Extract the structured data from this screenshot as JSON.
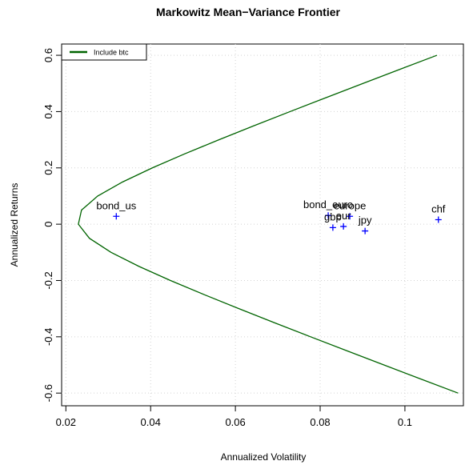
{
  "chart_data": {
    "type": "frontier",
    "title": "Markowitz Mean−Variance Frontier",
    "x_label": "Annualized Volatility",
    "y_label": "Annualized Returns",
    "xlim": [
      0.019,
      0.1138
    ],
    "ylim": [
      -0.645,
      0.64
    ],
    "xticks": [
      0.02,
      0.04,
      0.06,
      0.08,
      0.1
    ],
    "yticks": [
      -0.6,
      -0.4,
      -0.2,
      0.0,
      0.2,
      0.4,
      0.6
    ],
    "grid": true,
    "legend_position": "topleft",
    "series": [
      {
        "name": "Include btc",
        "color": "#006400",
        "x": [
          0.11255,
          0.10378,
          0.09505,
          0.08636,
          0.07774,
          0.06922,
          0.06082,
          0.05261,
          0.04469,
          0.03726,
          0.03066,
          0.02555,
          0.02295,
          0.02369,
          0.02751,
          0.03338,
          0.0404,
          0.04806,
          0.05612,
          0.06443,
          0.07289,
          0.08146,
          0.09011,
          0.09881,
          0.10756
        ],
        "values": [
          -0.6,
          -0.55,
          -0.5,
          -0.45,
          -0.4,
          -0.35,
          -0.3,
          -0.25,
          -0.2,
          -0.15,
          -0.1,
          -0.05,
          0.0,
          0.05,
          0.1,
          0.15,
          0.2,
          0.25,
          0.3,
          0.35,
          0.4,
          0.45,
          0.5,
          0.55,
          0.6
        ]
      }
    ],
    "points": {
      "color": "#0000ff",
      "labels": [
        "bond_us",
        "bond_euro",
        "europe",
        "gbp",
        "eur",
        "jpy",
        "chf"
      ],
      "x": [
        0.0319,
        0.0819,
        0.087,
        0.083,
        0.0855,
        0.0906,
        0.1079
      ],
      "values": [
        0.028,
        0.031,
        0.028,
        -0.012,
        -0.008,
        -0.024,
        0.016
      ]
    }
  }
}
